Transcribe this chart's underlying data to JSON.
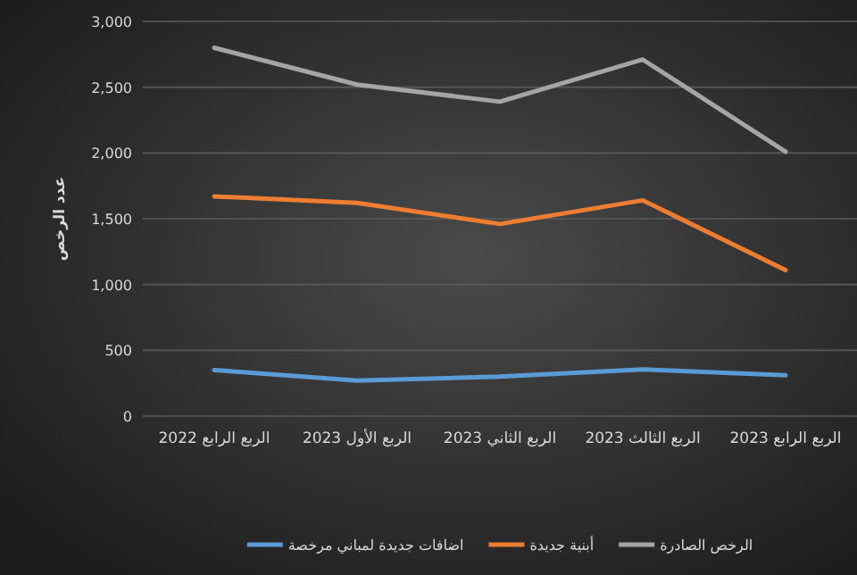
{
  "chart_data": {
    "type": "line",
    "ylabel": "عدد الرخص",
    "categories": [
      "الربع الرابع 2022",
      "الربع الأول 2023",
      "الربع الثاني 2023",
      "الربع الثالث 2023",
      "الربع الرابع 2023"
    ],
    "series": [
      {
        "name": "الرخص الصادرة",
        "color": "#a5a5a5",
        "values": [
          2800,
          2520,
          2390,
          2710,
          2010
        ]
      },
      {
        "name": "أبنية جديدة",
        "color": "#ed7d31",
        "values": [
          1670,
          1620,
          1460,
          1640,
          1110
        ]
      },
      {
        "name": "اضافات جديدة لمباني مرخصة",
        "color": "#5b9bd5",
        "values": [
          350,
          270,
          300,
          355,
          310
        ]
      }
    ],
    "ylim": [
      0,
      3000
    ],
    "yticks": [
      0,
      {
        "value": 500,
        "label": "500"
      },
      {
        "value": 1000,
        "label": "1,000"
      },
      {
        "value": 1500,
        "label": "1,500"
      },
      {
        "value": 2000,
        "label": "2,000"
      },
      {
        "value": 2500,
        "label": "2,500"
      },
      {
        "value": 3000,
        "label": "3,000"
      }
    ],
    "grid": "y",
    "legend": "bottom"
  }
}
